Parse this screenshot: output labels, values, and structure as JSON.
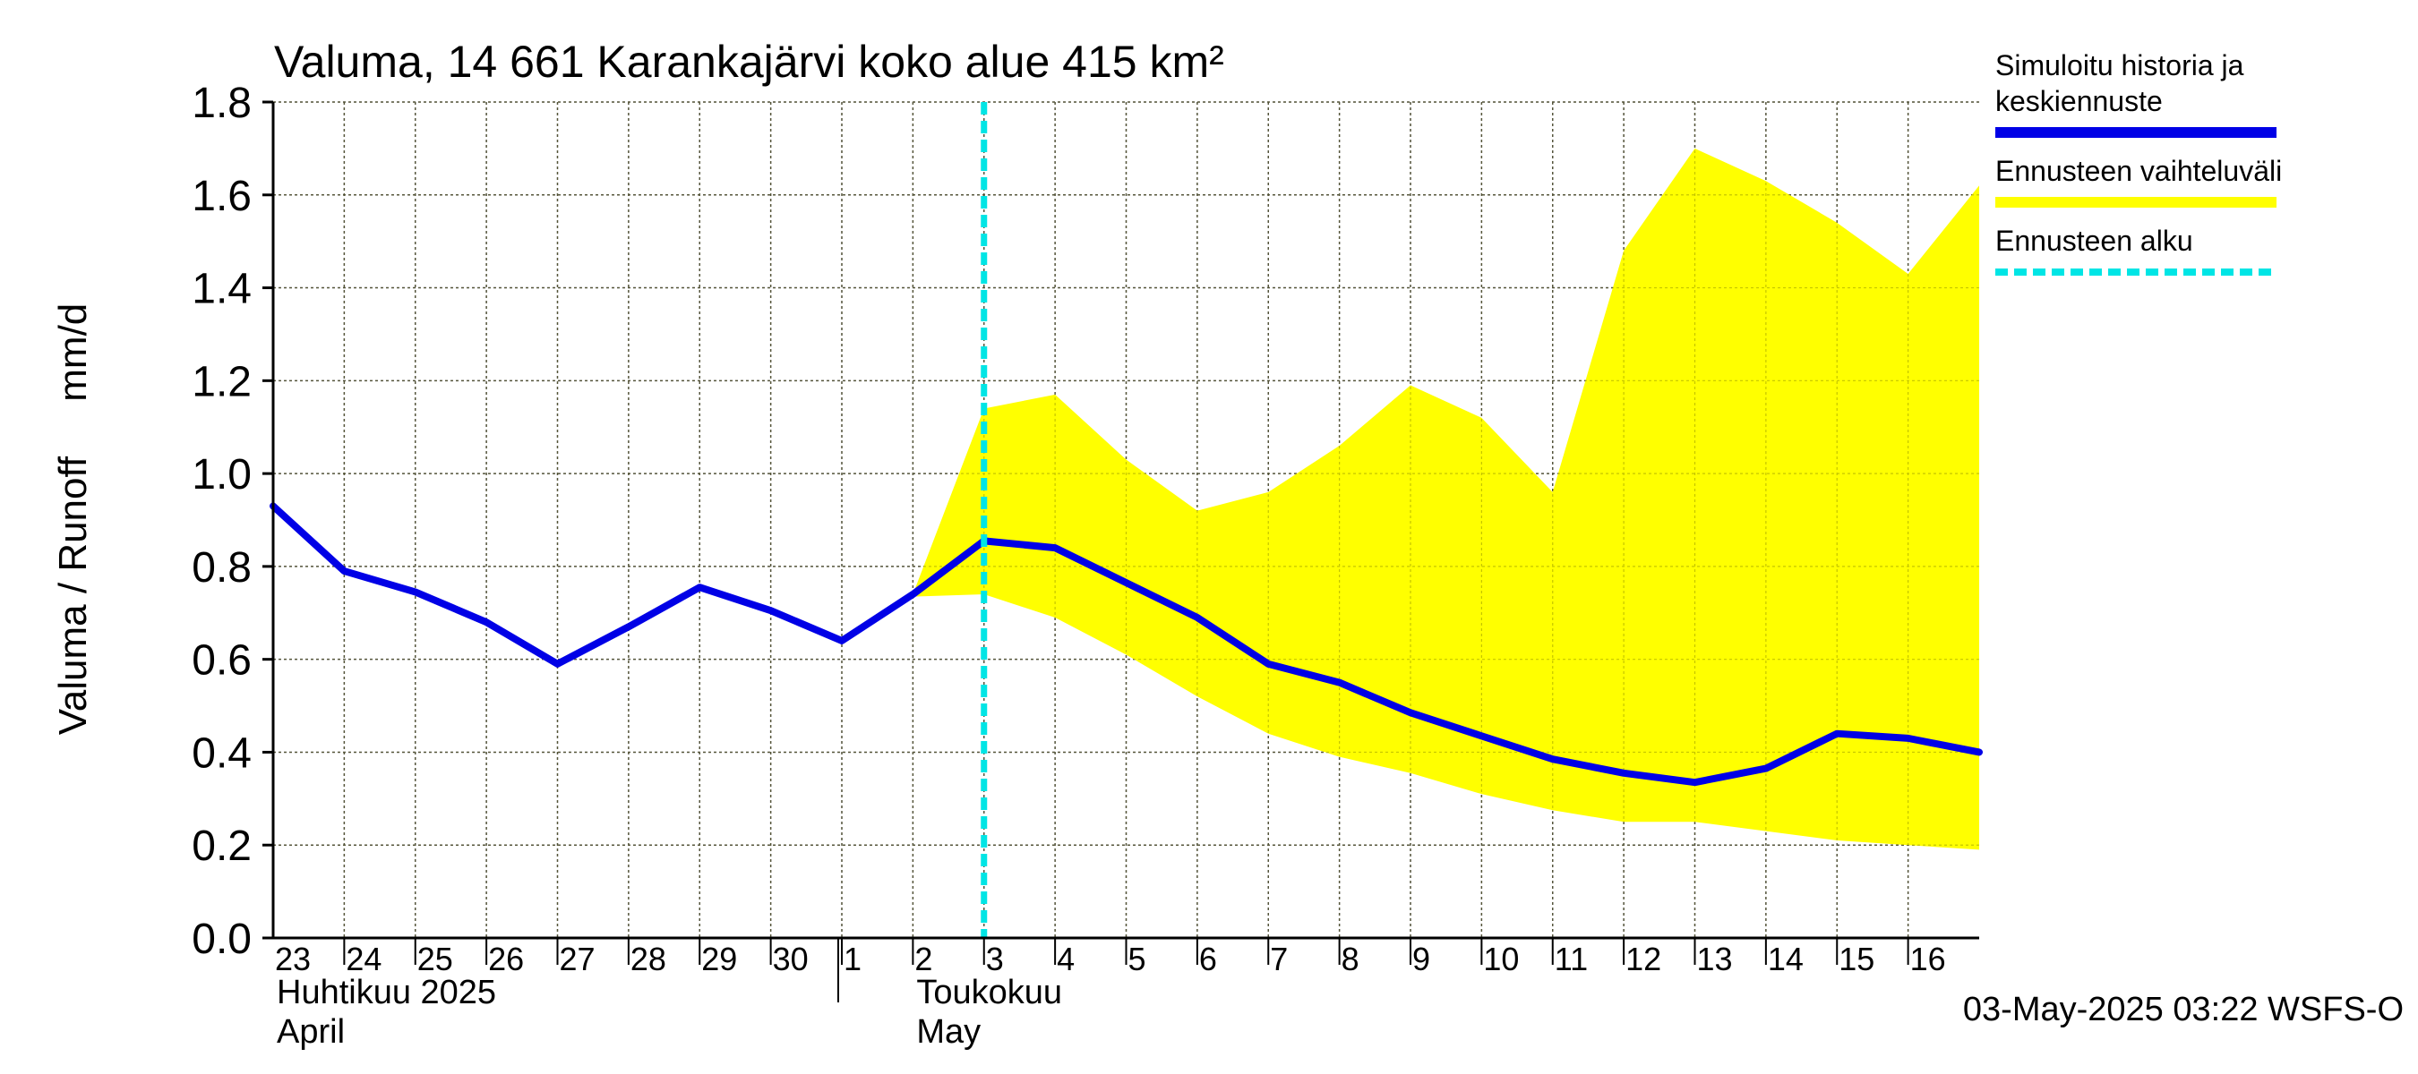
{
  "chart_data": {
    "type": "line",
    "title": "Valuma, 14 661 Karankajärvi koko alue 415 km²",
    "ylabel": "Valuma / Runoff     mm/d",
    "ylim": [
      0,
      1.8
    ],
    "yticks": [
      0.0,
      0.2,
      0.4,
      0.6,
      0.8,
      1.0,
      1.2,
      1.4,
      1.6,
      1.8
    ],
    "ytick_labels": [
      "0.0",
      "0.2",
      "0.4",
      "0.6",
      "0.8",
      "1.0",
      "1.2",
      "1.4",
      "1.6",
      "1.8"
    ],
    "x_range": [
      0,
      24
    ],
    "x_ticks": [
      {
        "x": 0,
        "label": "23"
      },
      {
        "x": 1,
        "label": "24"
      },
      {
        "x": 2,
        "label": "25"
      },
      {
        "x": 3,
        "label": "26"
      },
      {
        "x": 4,
        "label": "27"
      },
      {
        "x": 5,
        "label": "28"
      },
      {
        "x": 6,
        "label": "29"
      },
      {
        "x": 7,
        "label": "30"
      },
      {
        "x": 8,
        "label": "1"
      },
      {
        "x": 9,
        "label": "2"
      },
      {
        "x": 10,
        "label": "3"
      },
      {
        "x": 11,
        "label": "4"
      },
      {
        "x": 12,
        "label": "5"
      },
      {
        "x": 13,
        "label": "6"
      },
      {
        "x": 14,
        "label": "7"
      },
      {
        "x": 15,
        "label": "8"
      },
      {
        "x": 16,
        "label": "9"
      },
      {
        "x": 17,
        "label": "10"
      },
      {
        "x": 18,
        "label": "11"
      },
      {
        "x": 19,
        "label": "12"
      },
      {
        "x": 20,
        "label": "13"
      },
      {
        "x": 21,
        "label": "14"
      },
      {
        "x": 22,
        "label": "15"
      },
      {
        "x": 23,
        "label": "16"
      }
    ],
    "month_labels": [
      {
        "x": 0,
        "line1": "Huhtikuu  2025",
        "line2": "April"
      },
      {
        "x": 9,
        "line1": "Toukokuu",
        "line2": "May"
      }
    ],
    "month_divider_x": 8,
    "forecast_start_x": 10,
    "series": [
      {
        "name": "Simuloitu historia ja keskiennuste",
        "color": "#0000e6",
        "x": [
          0,
          1,
          2,
          3,
          4,
          5,
          6,
          7,
          8,
          9,
          10,
          11,
          12,
          13,
          14,
          15,
          16,
          17,
          18,
          19,
          20,
          21,
          22,
          23,
          24
        ],
        "values": [
          0.93,
          0.79,
          0.745,
          0.68,
          0.59,
          0.67,
          0.755,
          0.705,
          0.64,
          0.74,
          0.855,
          0.84,
          0.765,
          0.69,
          0.59,
          0.55,
          0.485,
          0.435,
          0.385,
          0.355,
          0.335,
          0.365,
          0.44,
          0.43,
          0.4
        ]
      }
    ],
    "band": {
      "name": "Ennusteen vaihteluväli",
      "color": "#ffff00",
      "x": [
        9,
        10,
        11,
        12,
        13,
        14,
        15,
        16,
        17,
        18,
        19,
        20,
        21,
        22,
        23,
        24
      ],
      "upper": [
        0.74,
        1.14,
        1.17,
        1.03,
        0.92,
        0.96,
        1.06,
        1.19,
        1.12,
        0.96,
        1.48,
        1.7,
        1.63,
        1.54,
        1.43,
        1.62
      ],
      "lower": [
        0.735,
        0.74,
        0.69,
        0.61,
        0.52,
        0.44,
        0.39,
        0.355,
        0.31,
        0.275,
        0.25,
        0.25,
        0.23,
        0.21,
        0.2,
        0.19
      ]
    },
    "legend": [
      {
        "label_lines": [
          "Simuloitu historia ja",
          "keskiennuste"
        ],
        "color": "#0000e6",
        "style": "solid"
      },
      {
        "label_lines": [
          "Ennusteen vaihteluväli"
        ],
        "color": "#ffff00",
        "style": "solid"
      },
      {
        "label_lines": [
          "Ennusteen alku"
        ],
        "color": "#00e5e5",
        "style": "dashed"
      }
    ],
    "footer": "03-May-2025 03:22 WSFS-O"
  }
}
